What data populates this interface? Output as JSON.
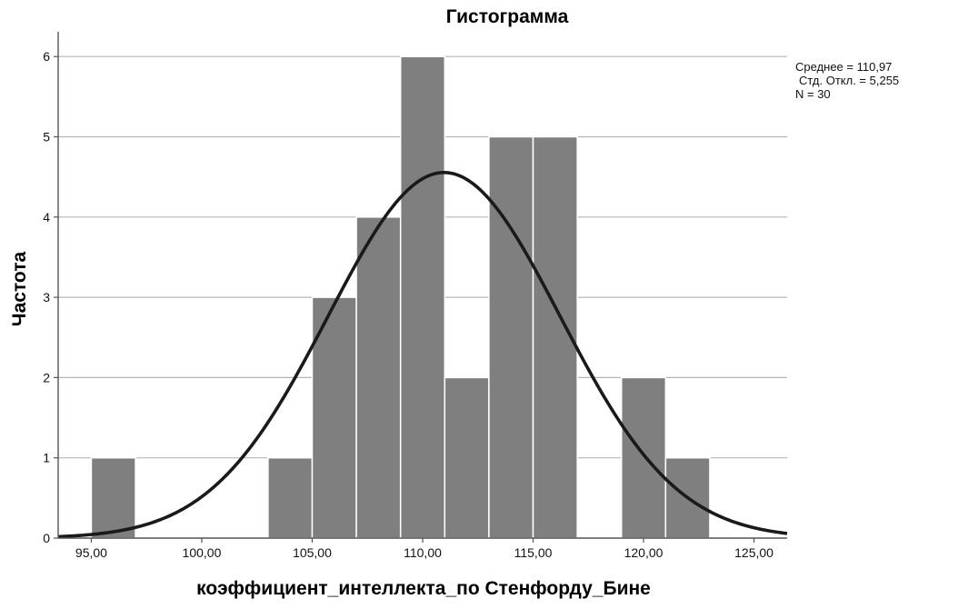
{
  "chart_data": {
    "type": "bar",
    "title": "Гистограмма",
    "xlabel": "коэффициент_интеллекта_по Стенфорду_Бине",
    "ylabel": "Частота",
    "xlim": [
      93.5,
      126.5
    ],
    "ylim": [
      0,
      6.3
    ],
    "bin_width": 2,
    "bins": [
      {
        "start": 95,
        "end": 97,
        "count": 1
      },
      {
        "start": 97,
        "end": 99,
        "count": 0
      },
      {
        "start": 99,
        "end": 101,
        "count": 0
      },
      {
        "start": 101,
        "end": 103,
        "count": 0
      },
      {
        "start": 103,
        "end": 105,
        "count": 1
      },
      {
        "start": 105,
        "end": 107,
        "count": 3
      },
      {
        "start": 107,
        "end": 109,
        "count": 4
      },
      {
        "start": 109,
        "end": 111,
        "count": 6
      },
      {
        "start": 111,
        "end": 113,
        "count": 2
      },
      {
        "start": 113,
        "end": 115,
        "count": 5
      },
      {
        "start": 115,
        "end": 117,
        "count": 5
      },
      {
        "start": 117,
        "end": 119,
        "count": 0
      },
      {
        "start": 119,
        "end": 121,
        "count": 2
      },
      {
        "start": 121,
        "end": 123,
        "count": 1
      }
    ],
    "x_ticks": [
      {
        "value": 95,
        "label": "95,00"
      },
      {
        "value": 100,
        "label": "100,00"
      },
      {
        "value": 105,
        "label": "105,00"
      },
      {
        "value": 110,
        "label": "110,00"
      },
      {
        "value": 115,
        "label": "115,00"
      },
      {
        "value": 120,
        "label": "120,00"
      },
      {
        "value": 125,
        "label": "125,00"
      }
    ],
    "y_ticks": [
      {
        "value": 0,
        "label": "0"
      },
      {
        "value": 1,
        "label": "1"
      },
      {
        "value": 2,
        "label": "2"
      },
      {
        "value": 3,
        "label": "3"
      },
      {
        "value": 4,
        "label": "4"
      },
      {
        "value": 5,
        "label": "5"
      },
      {
        "value": 6,
        "label": "6"
      }
    ],
    "normal_curve": {
      "mean": 110.97,
      "sd": 5.255,
      "n": 30
    },
    "stats_text": [
      "Среднее = 110,97",
      "Стд. Откл. = 5,255",
      "N = 30"
    ],
    "grid": "horizontal",
    "legend": "top-right",
    "colors": {
      "bar": "#7f7f7f",
      "bar_edge": "#ffffff",
      "curve": "#1a1a1a",
      "grid": "#b5b5b5",
      "axis": "#555555"
    }
  }
}
